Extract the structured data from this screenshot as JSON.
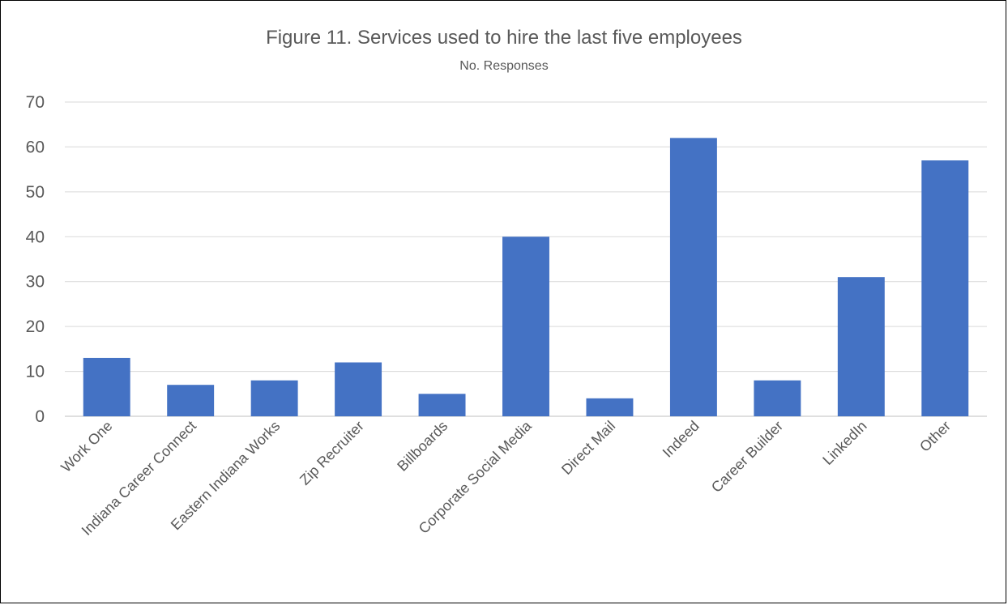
{
  "chart_data": {
    "type": "bar",
    "title": "Figure 11. Services used to hire the last five employees",
    "subtitle": "No. Responses",
    "categories": [
      "Work One",
      "Indiana Career Connect",
      "Eastern Indiana Works",
      "Zip Recruiter",
      "Billboards",
      "Corporate Social Media",
      "Direct Mail",
      "Indeed",
      "Career Builder",
      "LinkedIn",
      "Other"
    ],
    "values": [
      13,
      7,
      8,
      12,
      5,
      40,
      4,
      62,
      8,
      31,
      57
    ],
    "ylim": [
      0,
      70
    ],
    "yticks": [
      "0",
      "10",
      "20",
      "30",
      "40",
      "50",
      "60",
      "70"
    ],
    "grid": true,
    "legend": "none",
    "bar_color": "#4472c4"
  }
}
